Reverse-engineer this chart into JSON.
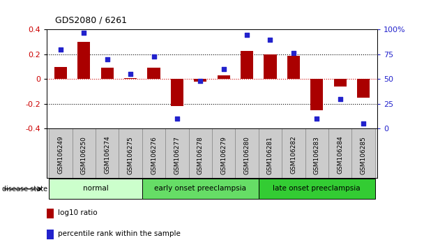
{
  "title": "GDS2080 / 6261",
  "samples": [
    "GSM106249",
    "GSM106250",
    "GSM106274",
    "GSM106275",
    "GSM106276",
    "GSM106277",
    "GSM106278",
    "GSM106279",
    "GSM106280",
    "GSM106281",
    "GSM106282",
    "GSM106283",
    "GSM106284",
    "GSM106285"
  ],
  "log10_ratio": [
    0.1,
    0.3,
    0.09,
    0.01,
    0.09,
    -0.22,
    -0.02,
    0.03,
    0.23,
    0.2,
    0.19,
    -0.25,
    -0.06,
    -0.15
  ],
  "percentile_rank": [
    80,
    97,
    70,
    55,
    73,
    10,
    48,
    60,
    95,
    90,
    76,
    10,
    30,
    5
  ],
  "bar_color": "#aa0000",
  "dot_color": "#2222cc",
  "left_ylim": [
    -0.4,
    0.4
  ],
  "right_ylim": [
    0,
    100
  ],
  "left_yticks": [
    -0.4,
    -0.2,
    0.0,
    0.2,
    0.4
  ],
  "right_yticks": [
    0,
    25,
    50,
    75,
    100
  ],
  "right_yticklabels": [
    "0",
    "25",
    "50",
    "75",
    "100%"
  ],
  "zero_line_color": "#cc0000",
  "groups": [
    {
      "label": "normal",
      "start": 0,
      "end": 3,
      "color": "#ccffcc"
    },
    {
      "label": "early onset preeclampsia",
      "start": 4,
      "end": 8,
      "color": "#66dd66"
    },
    {
      "label": "late onset preeclampsia",
      "start": 9,
      "end": 13,
      "color": "#33cc33"
    }
  ],
  "disease_state_label": "disease state",
  "legend_items": [
    {
      "color": "#aa0000",
      "label": "log10 ratio"
    },
    {
      "color": "#2222cc",
      "label": "percentile rank within the sample"
    }
  ],
  "left_tick_color": "#cc0000",
  "right_tick_color": "#2222cc"
}
